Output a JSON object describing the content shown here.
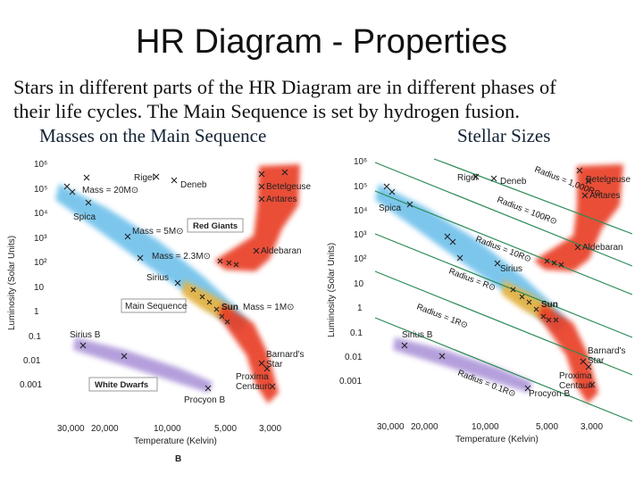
{
  "title": "HR Diagram - Properties",
  "intro_line1": "Stars in different parts of the HR Diagram are in different phases of",
  "intro_line2": "their life cycles. The Main Sequence is set by hydrogen fusion.",
  "left_heading": "Masses on the Main Sequence",
  "right_heading": "Stellar Sizes",
  "colors": {
    "main_sequence": "#5bb8e8",
    "red_giants": "#e83a22",
    "white_dwarfs": "#a78fd6",
    "sun_region": "#f2b233",
    "panel_bg": "#ffffff"
  },
  "y_axis": {
    "label": "Luminosity (Solar Units)",
    "ticks": [
      "10⁶",
      "10⁵",
      "10⁴",
      "10³",
      "10²",
      "10",
      "1",
      "0.1",
      "0.01",
      "0.001"
    ]
  },
  "x_axis": {
    "label": "Temperature (Kelvin)",
    "ticks": [
      "30,000",
      "20,000",
      "10,000",
      "5,000",
      "3,000"
    ]
  },
  "left_panel": {
    "bottom_letter": "B",
    "stars": {
      "rigel": "Rigel",
      "deneb": "Deneb",
      "betelgeuse": "Betelgeuse",
      "antares": "Antares",
      "spica": "Spica",
      "aldebaran": "Aldebaran",
      "sirius": "Sirius",
      "sun": "Sun",
      "sirius_b": "Sirius B",
      "barnards_line1": "Barnard's",
      "barnards_line2": "Star",
      "proxima_line1": "Proxima",
      "proxima_line2": "Centauri",
      "procyon_b": "Procyon B"
    },
    "masses": [
      "Mass = 20M⊙",
      "Mass = 5M⊙",
      "Mass = 2.3M⊙",
      "Mass = 1M⊙"
    ],
    "boxes": {
      "red_giants": "Red Giants",
      "main_sequence": "Main Sequence",
      "white_dwarfs": "White Dwarfs"
    }
  },
  "right_panel": {
    "stars": {
      "rigel": "Rigel",
      "deneb": "Deneb",
      "betelgeuse": "Betelgeuse",
      "antares": "Antares",
      "spica": "Spica",
      "aldebaran": "Aldebaran",
      "sirius": "Sirius",
      "sun": "Sun",
      "sirius_b": "Sirius B",
      "barnards_line1": "Barnard's",
      "barnards_line2": "Star",
      "proxima_line1": "Proxima",
      "proxima_line2": "Centauri",
      "procyon_b": "Procyon B"
    },
    "radii": [
      "Radius = 1,000R⊙",
      "Radius = 100R⊙",
      "Radius = 10R⊙",
      "Radius = R⊙",
      "Radius = 1R⊙",
      "Radius = 0.1R⊙"
    ]
  }
}
